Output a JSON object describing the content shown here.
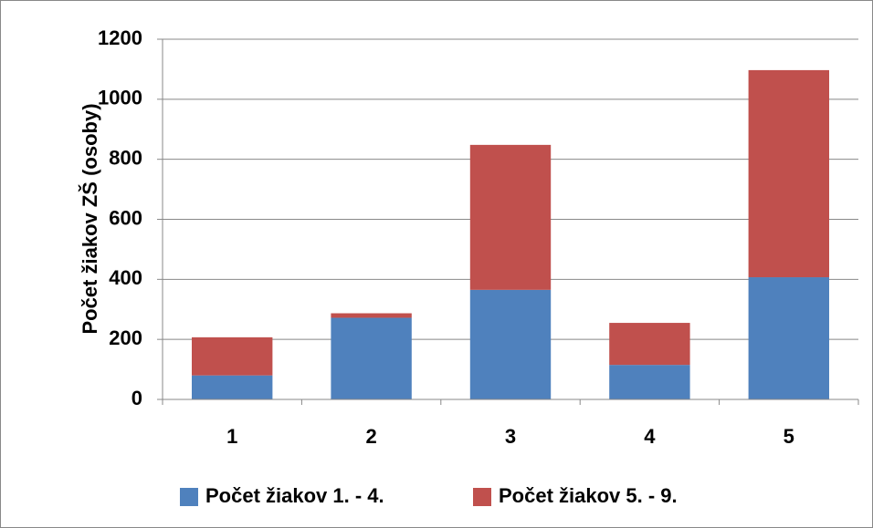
{
  "chart_data": {
    "type": "stacked_bar",
    "ylabel": "Počet žiakov ZŠ (osoby)",
    "categories": [
      "1",
      "2",
      "3",
      "4",
      "5"
    ],
    "series": [
      {
        "name": "Počet žiakov 1. - 4.",
        "color": "#4f81bd",
        "values": [
          80,
          272,
          365,
          115,
          407
        ]
      },
      {
        "name": "Počet žiakov 5. - 9.",
        "color": "#c0504d",
        "values": [
          127,
          15,
          483,
          140,
          690
        ]
      }
    ],
    "ylim": [
      0,
      1200
    ],
    "yticks": [
      0,
      200,
      400,
      600,
      800,
      1000,
      1200
    ],
    "grid": true,
    "legend": "bottom"
  }
}
